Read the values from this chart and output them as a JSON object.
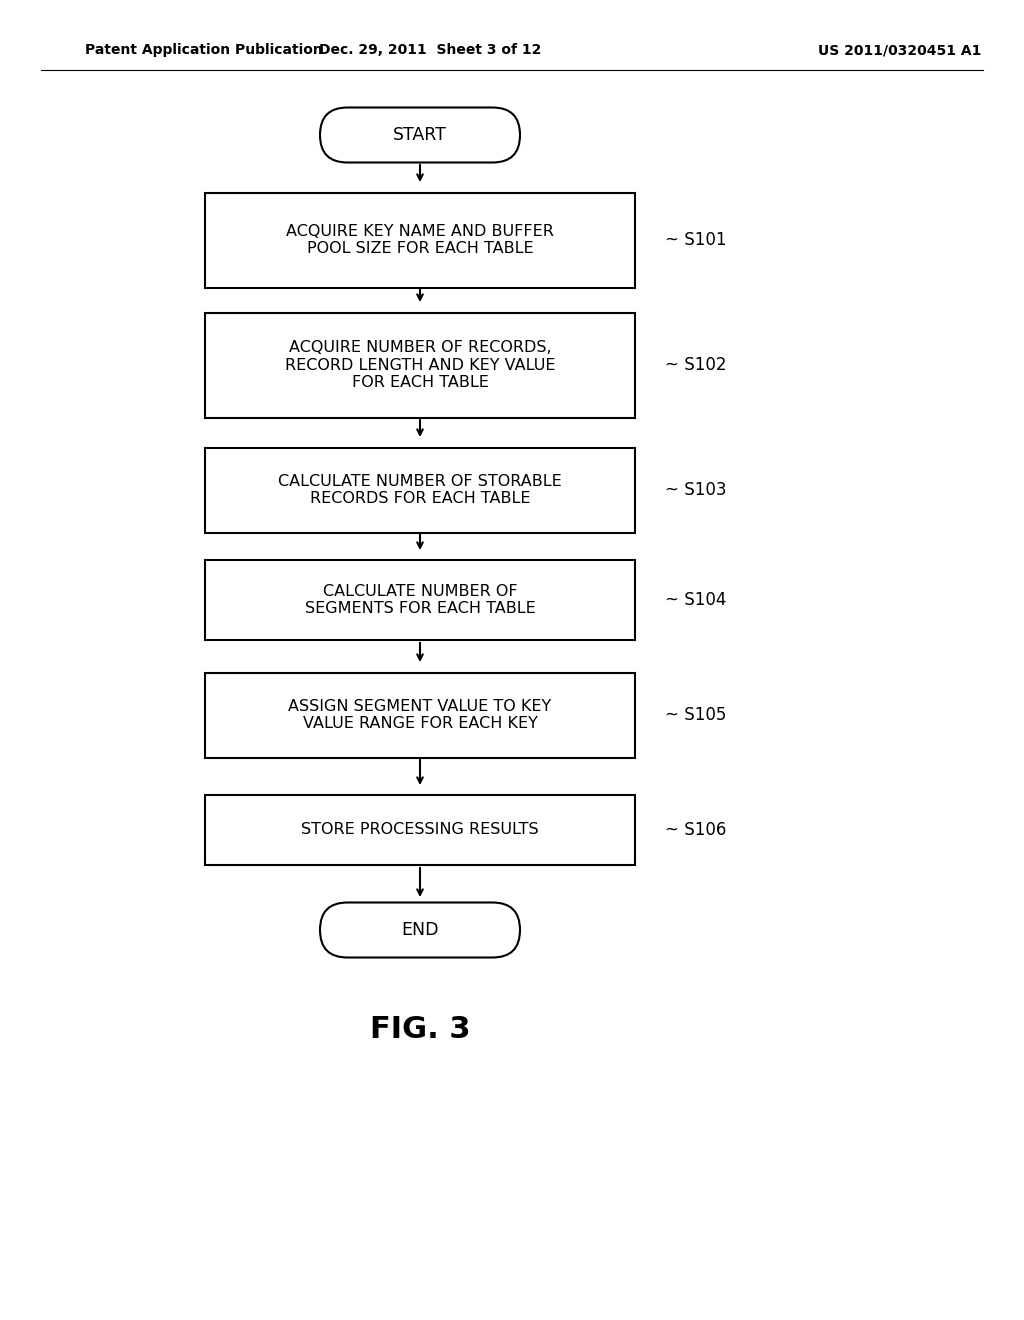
{
  "bg_color": "#ffffff",
  "header_left": "Patent Application Publication",
  "header_mid": "Dec. 29, 2011  Sheet 3 of 12",
  "header_right": "US 2011/0320451 A1",
  "figure_label": "FIG. 3",
  "start_label": "START",
  "end_label": "END",
  "steps": [
    {
      "label": "ACQUIRE KEY NAME AND BUFFER\nPOOL SIZE FOR EACH TABLE",
      "step_id": "S101"
    },
    {
      "label": "ACQUIRE NUMBER OF RECORDS,\nRECORD LENGTH AND KEY VALUE\nFOR EACH TABLE",
      "step_id": "S102"
    },
    {
      "label": "CALCULATE NUMBER OF STORABLE\nRECORDS FOR EACH TABLE",
      "step_id": "S103"
    },
    {
      "label": "CALCULATE NUMBER OF\nSEGMENTS FOR EACH TABLE",
      "step_id": "S104"
    },
    {
      "label": "ASSIGN SEGMENT VALUE TO KEY\nVALUE RANGE FOR EACH KEY",
      "step_id": "S105"
    },
    {
      "label": "STORE PROCESSING RESULTS",
      "step_id": "S106"
    }
  ],
  "box_color": "#ffffff",
  "box_edge_color": "#000000",
  "text_color": "#000000",
  "arrow_color": "#000000",
  "font_size_box": 11.5,
  "font_size_step": 12,
  "font_size_header": 10,
  "font_size_fig": 22
}
